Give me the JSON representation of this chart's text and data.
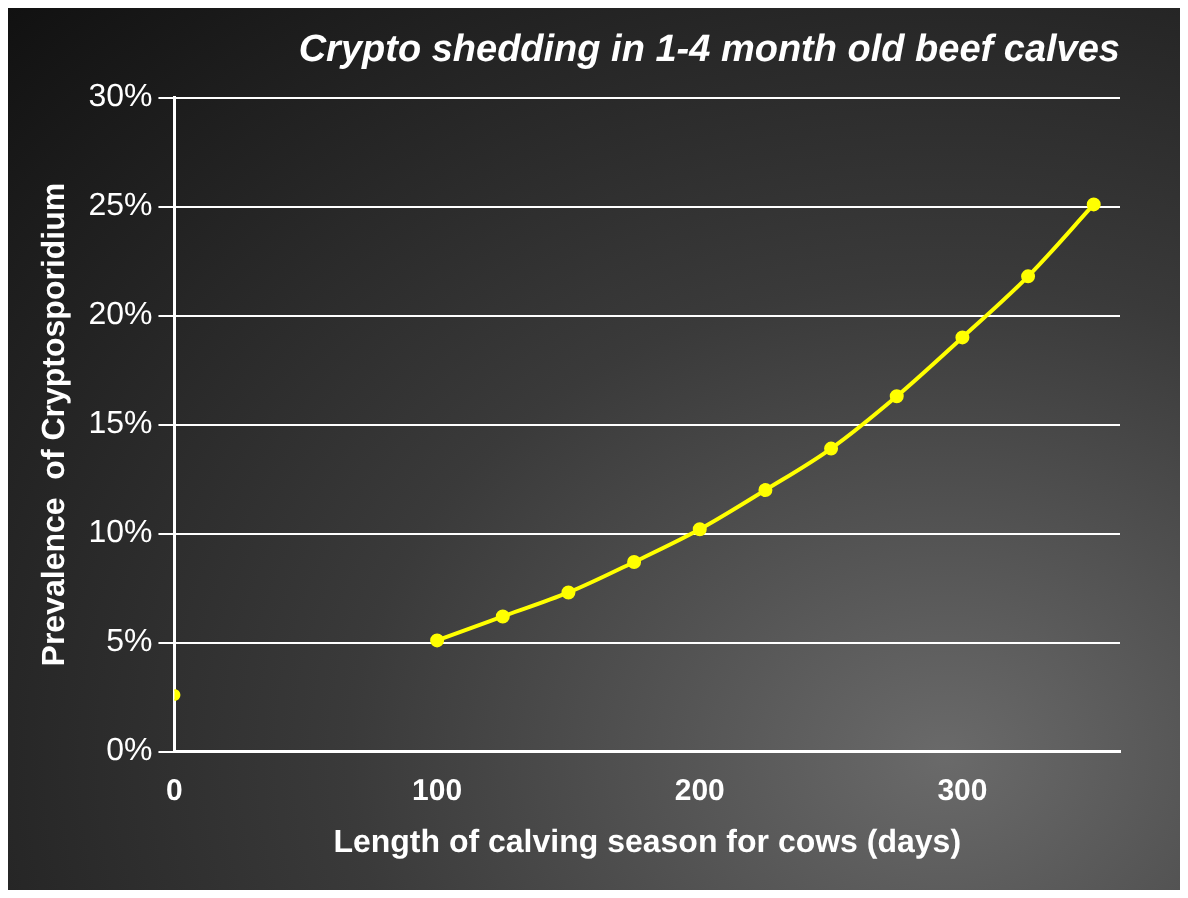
{
  "chart_data": {
    "type": "line",
    "title": "Crypto shedding in 1-4 month old beef calves",
    "xlabel": "Length of calving season for cows (days)",
    "ylabel": "Prevalence  of Cryptosporidium",
    "series": [
      {
        "type": "scatter",
        "color": "#ffff00",
        "x": [
          0
        ],
        "values": [
          2.6
        ]
      },
      {
        "type": "line",
        "color": "#ffff00",
        "x": [
          100,
          125,
          150,
          175,
          200,
          225,
          250,
          275,
          300,
          325,
          350
        ],
        "values": [
          5.1,
          6.2,
          7.3,
          8.7,
          10.2,
          12.0,
          13.9,
          16.3,
          19.0,
          21.8,
          25.1
        ]
      }
    ],
    "xlim": [
      0,
      360
    ],
    "xticks": [
      0,
      100,
      200,
      300
    ],
    "ylim": [
      0,
      30
    ],
    "yticks": [
      {
        "value": 0,
        "label": "0%"
      },
      {
        "value": 5,
        "label": "5%"
      },
      {
        "value": 10,
        "label": "10%"
      },
      {
        "value": 15,
        "label": "15%"
      },
      {
        "value": 20,
        "label": "20%"
      },
      {
        "value": 25,
        "label": "25%"
      },
      {
        "value": 30,
        "label": "30%"
      }
    ],
    "grid": "y",
    "legend": false,
    "marker": "circle",
    "line_style": "solid"
  }
}
